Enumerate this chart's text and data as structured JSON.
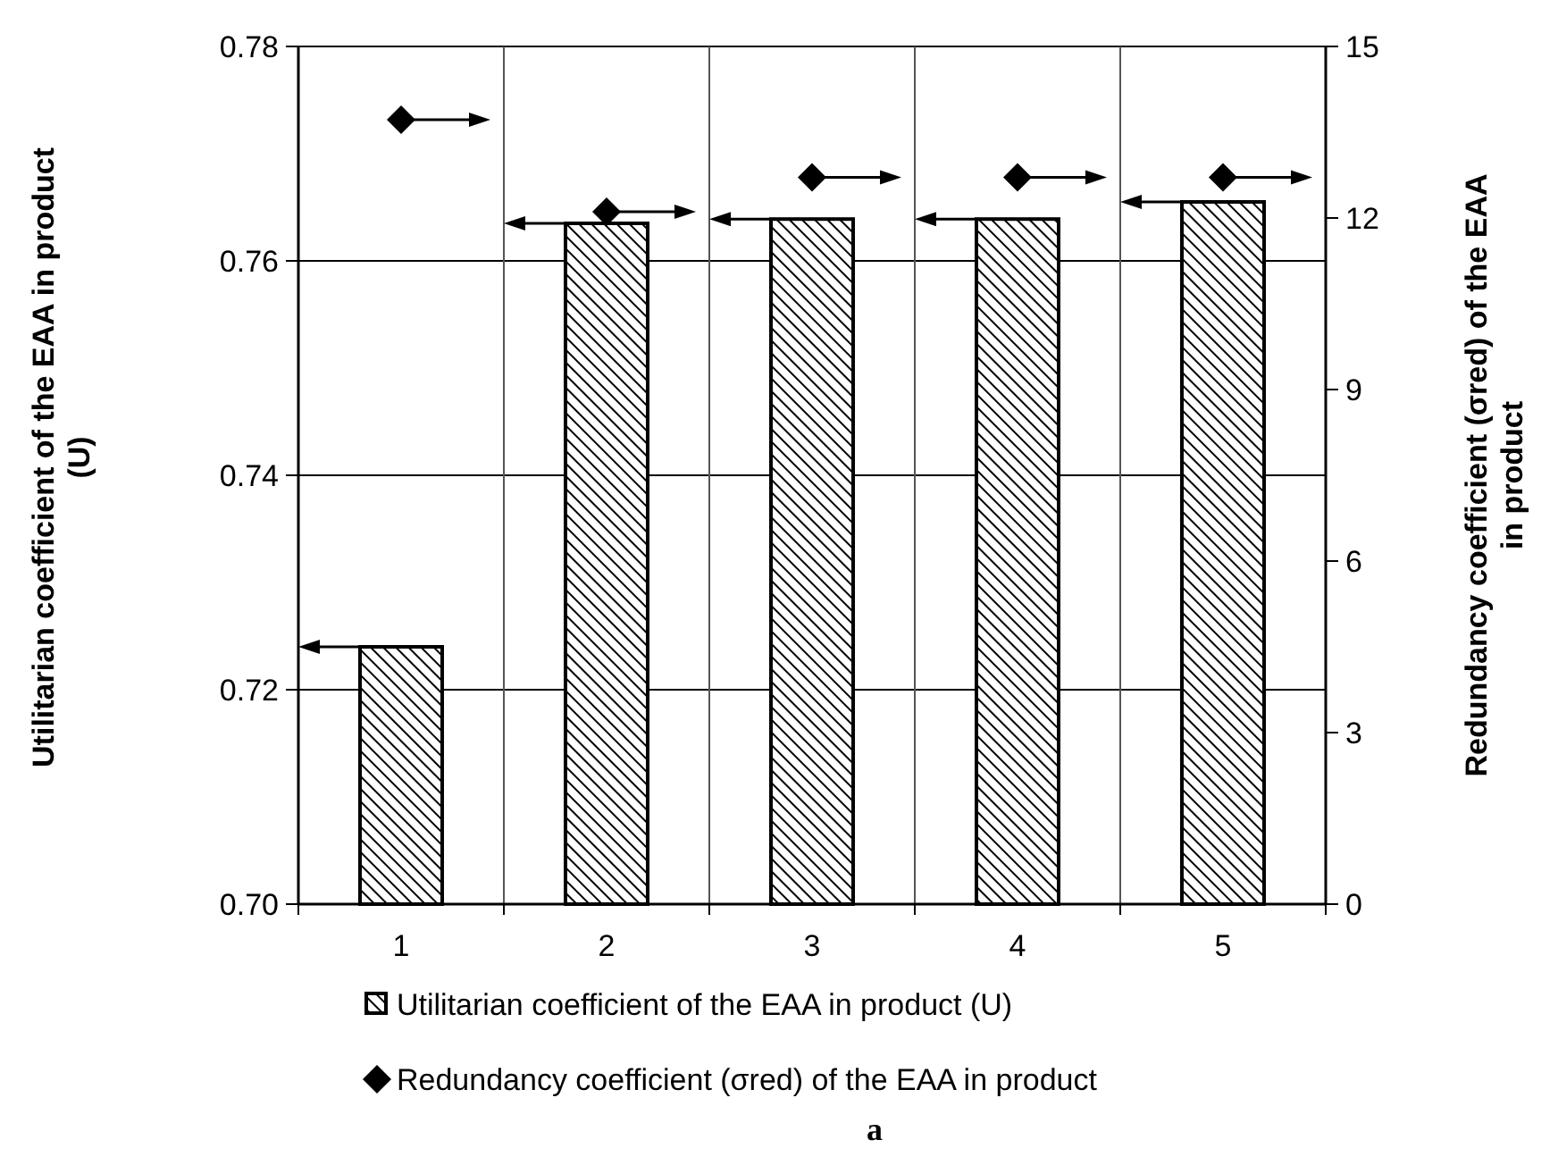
{
  "chart_data": {
    "type": "bar",
    "categories": [
      "1",
      "2",
      "3",
      "4",
      "5"
    ],
    "series": [
      {
        "name": "Utilitarian coefficient of the EAA in product (U)",
        "color": "#000000",
        "values": [
          0.724,
          0.7635,
          0.7639,
          0.7639,
          0.7655
        ]
      },
      {
        "name": "Redundancy coefficient (σred) of the EAA in product",
        "type": "scatter",
        "axis": "y2",
        "color": "#000000",
        "marker": "diamond",
        "values": [
          13.72,
          12.11,
          12.71,
          12.71,
          12.71
        ]
      }
    ],
    "ylabel": "Utilitarian coefficient of the EAA in product (U)",
    "y2label": "Redundancy coefficient (σred) of the EAA in product",
    "ylim": [
      0.7,
      0.78
    ],
    "yticks": [
      {
        "value": 0.7,
        "label": "0.70"
      },
      {
        "value": 0.72,
        "label": "0.72"
      },
      {
        "value": 0.74,
        "label": "0.74"
      },
      {
        "value": 0.76,
        "label": "0.76"
      },
      {
        "value": 0.78,
        "label": "0.78"
      }
    ],
    "y2lim": [
      0,
      15
    ],
    "y2ticks": [
      0,
      3,
      6,
      9,
      12,
      15
    ],
    "grid": true,
    "legend": "bottom",
    "annotations": [
      "a"
    ]
  }
}
